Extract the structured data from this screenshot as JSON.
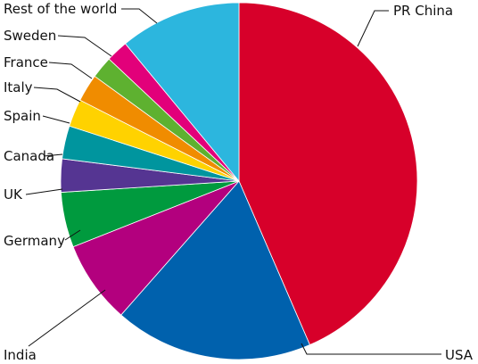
{
  "chart_data": {
    "type": "pie",
    "start_angle_deg": 0,
    "direction": "clockwise",
    "slices": [
      {
        "label": "PR China",
        "value": 43.5,
        "color": "#d7002a"
      },
      {
        "label": "USA",
        "value": 18.0,
        "color": "#0061ad"
      },
      {
        "label": "India",
        "value": 7.5,
        "color": "#b3007e"
      },
      {
        "label": "Germany",
        "value": 5.0,
        "color": "#009a3e"
      },
      {
        "label": "UK",
        "value": 3.0,
        "color": "#553592"
      },
      {
        "label": "Canada",
        "value": 3.0,
        "color": "#00959e"
      },
      {
        "label": "Spain",
        "value": 2.5,
        "color": "#ffd200"
      },
      {
        "label": "Italy",
        "value": 2.5,
        "color": "#f08c00"
      },
      {
        "label": "France",
        "value": 2.0,
        "color": "#5eb130"
      },
      {
        "label": "Sweden",
        "value": 2.0,
        "color": "#e2007a"
      },
      {
        "label": "Rest of the world",
        "value": 11.0,
        "color": "#2cb6de"
      }
    ]
  }
}
